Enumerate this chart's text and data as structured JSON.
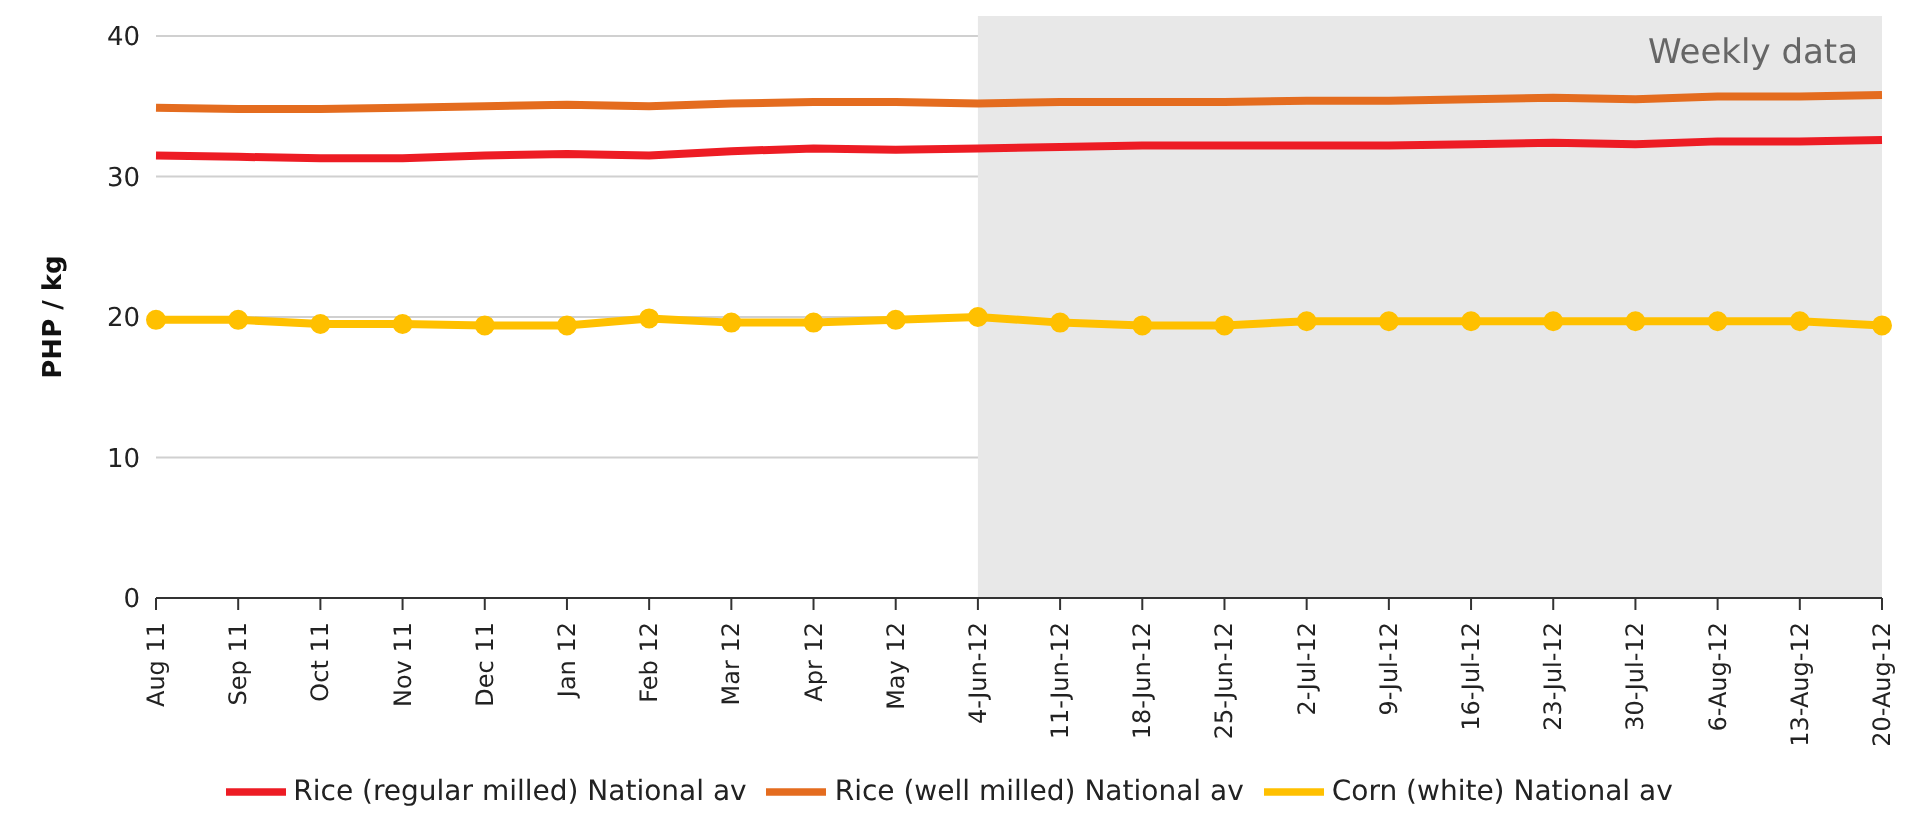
{
  "chart_data": {
    "type": "line",
    "ylabel": "PHP / kg",
    "categories": [
      "Aug 11",
      "Sep 11",
      "Oct 11",
      "Nov 11",
      "Dec 11",
      "Jan 12",
      "Feb 12",
      "Mar 12",
      "Apr 12",
      "May 12",
      "4-Jun-12",
      "11-Jun-12",
      "18-Jun-12",
      "25-Jun-12",
      "2-Jul-12",
      "9-Jul-12",
      "16-Jul-12",
      "23-Jul-12",
      "30-Jul-12",
      "6-Aug-12",
      "13-Aug-12",
      "20-Aug-12"
    ],
    "series": [
      {
        "name": "Rice (regular milled) National av",
        "color": "#ed1c24",
        "marker": "none",
        "values": [
          31.5,
          31.4,
          31.3,
          31.3,
          31.5,
          31.6,
          31.5,
          31.8,
          32.0,
          31.9,
          32.0,
          32.1,
          32.2,
          32.2,
          32.2,
          32.2,
          32.3,
          32.4,
          32.3,
          32.5,
          32.5,
          32.6
        ]
      },
      {
        "name": "Rice (well milled) National av",
        "color": "#e46c1f",
        "marker": "none",
        "values": [
          34.9,
          34.8,
          34.8,
          34.9,
          35.0,
          35.1,
          35.0,
          35.2,
          35.3,
          35.3,
          35.2,
          35.3,
          35.3,
          35.3,
          35.4,
          35.4,
          35.5,
          35.6,
          35.5,
          35.7,
          35.7,
          35.8
        ]
      },
      {
        "name": "Corn (white)  National av",
        "color": "#ffc000",
        "marker": "circle",
        "values": [
          19.8,
          19.8,
          19.5,
          19.5,
          19.4,
          19.4,
          19.9,
          19.6,
          19.6,
          19.8,
          20.0,
          19.6,
          19.4,
          19.4,
          19.7,
          19.7,
          19.7,
          19.7,
          19.7,
          19.7,
          19.7,
          19.4
        ]
      }
    ],
    "bands": [
      {
        "axis": "x",
        "from": "4-Jun-12",
        "to": "20-Aug-12",
        "label": "Weekly data",
        "color": "#e8e8e8"
      }
    ],
    "ylim": [
      0,
      40
    ],
    "yticks": [
      0,
      10,
      20,
      30,
      40
    ],
    "grid": "y",
    "legend": "bottom"
  }
}
